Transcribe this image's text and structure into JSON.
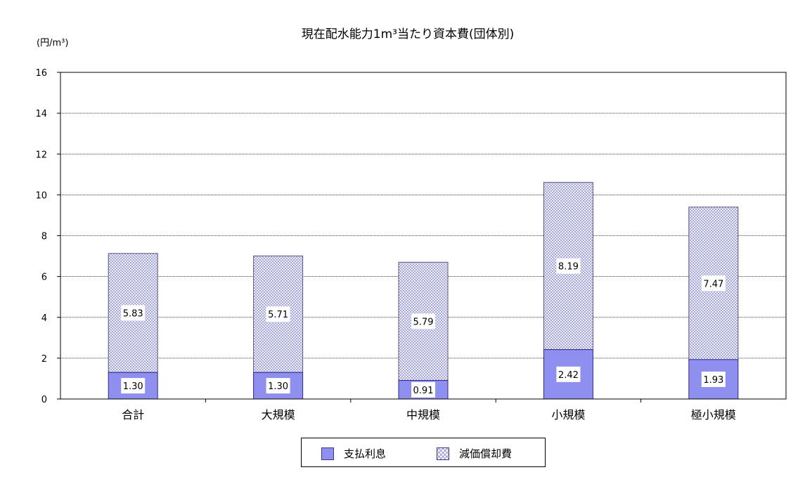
{
  "chart_data": {
    "type": "bar",
    "stacked": true,
    "title": "現在配水能力1m³当たり資本費(団体別)",
    "unit_label": "(円/m³)",
    "categories": [
      "合計",
      "大規模",
      "中規模",
      "小規模",
      "極小規模"
    ],
    "series": [
      {
        "name": "支払利息",
        "values": [
          1.3,
          1.3,
          0.91,
          2.42,
          1.93
        ],
        "labels": [
          "1.30",
          "1.30",
          "0.91",
          "2.42",
          "1.93"
        ],
        "color": "#8f8fef",
        "pattern": "solid"
      },
      {
        "name": "減価償却費",
        "values": [
          5.83,
          5.71,
          5.79,
          8.19,
          7.47
        ],
        "labels": [
          "5.83",
          "5.71",
          "5.79",
          "8.19",
          "7.47"
        ],
        "color": "#9a9ad8",
        "pattern": "cross-hatch"
      }
    ],
    "ylim": [
      0,
      16
    ],
    "yticks": [
      0,
      2,
      4,
      6,
      8,
      10,
      12,
      14,
      16
    ],
    "ytick_labels": [
      "0",
      "2",
      "4",
      "6",
      "8",
      "10",
      "12",
      "14",
      "16"
    ],
    "grid": true,
    "legend_position": "bottom-center"
  }
}
